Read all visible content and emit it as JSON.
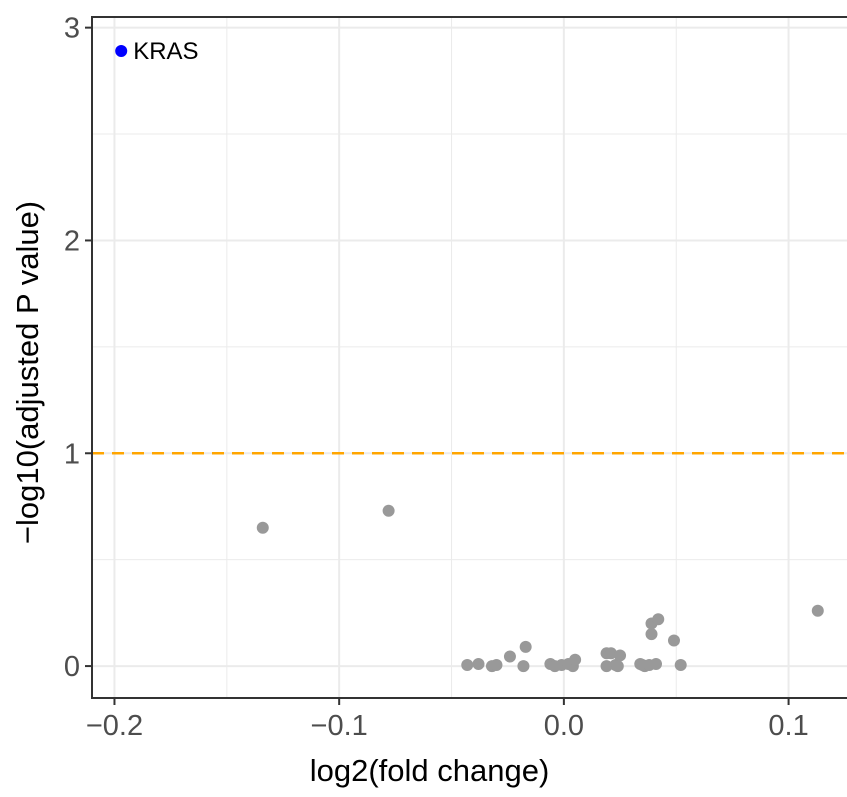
{
  "chart_data": {
    "type": "scatter",
    "title": "",
    "xlabel": "log2(fold change)",
    "ylabel": "−log10(adjusted P value)",
    "xlim": [
      -0.21,
      0.126
    ],
    "ylim": [
      -0.15,
      3.05
    ],
    "x_ticks": [
      -0.2,
      -0.1,
      0.0,
      0.1
    ],
    "x_tick_labels": [
      "−0.2",
      "−0.1",
      "0.0",
      "0.1"
    ],
    "y_ticks": [
      0,
      1,
      2,
      3
    ],
    "y_tick_labels": [
      "0",
      "1",
      "2",
      "3"
    ],
    "grid": true,
    "threshold": {
      "y": 1,
      "color": "#ffa500",
      "style": "dashed"
    },
    "colors": {
      "significant": "#0000ff",
      "not_significant": "#999999",
      "panel_border": "#333333",
      "grid": "#ebebeb"
    },
    "highlight": {
      "label": "KRAS",
      "x": -0.197,
      "y": 2.89
    },
    "points": [
      {
        "x": -0.197,
        "y": 2.89,
        "significant": true
      },
      {
        "x": -0.134,
        "y": 0.65,
        "significant": false
      },
      {
        "x": -0.078,
        "y": 0.73,
        "significant": false
      },
      {
        "x": -0.043,
        "y": 0.005,
        "significant": false
      },
      {
        "x": -0.038,
        "y": 0.01,
        "significant": false
      },
      {
        "x": -0.032,
        "y": 0.0,
        "significant": false
      },
      {
        "x": -0.03,
        "y": 0.005,
        "significant": false
      },
      {
        "x": -0.024,
        "y": 0.045,
        "significant": false
      },
      {
        "x": -0.018,
        "y": 0.0,
        "significant": false
      },
      {
        "x": -0.017,
        "y": 0.09,
        "significant": false
      },
      {
        "x": -0.006,
        "y": 0.01,
        "significant": false
      },
      {
        "x": -0.004,
        "y": 0.0,
        "significant": false
      },
      {
        "x": -0.001,
        "y": 0.005,
        "significant": false
      },
      {
        "x": 0.002,
        "y": 0.01,
        "significant": false
      },
      {
        "x": 0.004,
        "y": 0.0,
        "significant": false
      },
      {
        "x": 0.005,
        "y": 0.03,
        "significant": false
      },
      {
        "x": 0.019,
        "y": 0.0,
        "significant": false
      },
      {
        "x": 0.019,
        "y": 0.06,
        "significant": false
      },
      {
        "x": 0.021,
        "y": 0.06,
        "significant": false
      },
      {
        "x": 0.023,
        "y": 0.005,
        "significant": false
      },
      {
        "x": 0.024,
        "y": 0.0,
        "significant": false
      },
      {
        "x": 0.025,
        "y": 0.05,
        "significant": false
      },
      {
        "x": 0.034,
        "y": 0.01,
        "significant": false
      },
      {
        "x": 0.035,
        "y": 0.005,
        "significant": false
      },
      {
        "x": 0.036,
        "y": 0.0,
        "significant": false
      },
      {
        "x": 0.038,
        "y": 0.005,
        "significant": false
      },
      {
        "x": 0.039,
        "y": 0.15,
        "significant": false
      },
      {
        "x": 0.039,
        "y": 0.2,
        "significant": false
      },
      {
        "x": 0.042,
        "y": 0.22,
        "significant": false
      },
      {
        "x": 0.041,
        "y": 0.01,
        "significant": false
      },
      {
        "x": 0.049,
        "y": 0.12,
        "significant": false
      },
      {
        "x": 0.052,
        "y": 0.005,
        "significant": false
      },
      {
        "x": 0.113,
        "y": 0.26,
        "significant": false
      }
    ]
  }
}
